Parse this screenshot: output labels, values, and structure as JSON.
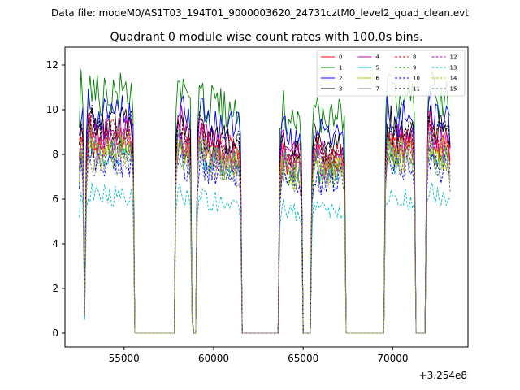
{
  "suptitle": "Data file: modeM0/AS1T03_194T01_9000003620_24731cztM0_level2_quad_clean.evt",
  "chart_data": {
    "type": "line",
    "title": "Quadrant 0 module wise count rates with 100.0s bins.",
    "xlabel": "",
    "ylabel": "",
    "x_offset_label": "+3.254e8",
    "xlim": [
      51700,
      74200
    ],
    "ylim": [
      -0.62,
      12.8
    ],
    "xticks": [
      55000,
      60000,
      65000,
      70000
    ],
    "xtick_labels": [
      "55000",
      "60000",
      "65000",
      "70000"
    ],
    "yticks": [
      0,
      2,
      4,
      6,
      8,
      10,
      12
    ],
    "ytick_labels": [
      "0",
      "2",
      "4",
      "6",
      "8",
      "10",
      "12"
    ],
    "grid": false,
    "legend_location": "top-right",
    "legend_columns": 4,
    "bin_width": 100,
    "x_start": 52500,
    "x_end": 73200,
    "on_intervals": [
      [
        52500,
        52700
      ],
      [
        52900,
        55500
      ],
      [
        57900,
        58700
      ],
      [
        59100,
        61500
      ],
      [
        63700,
        64900
      ],
      [
        65500,
        67300
      ],
      [
        69600,
        71200
      ],
      [
        71900,
        73200
      ]
    ],
    "gap_dips": [
      [
        52800,
        0.8
      ],
      [
        58800,
        0.6
      ],
      [
        64950,
        0
      ],
      [
        71250,
        0
      ],
      [
        71800,
        0
      ]
    ],
    "series": [
      {
        "name": "0",
        "color": "#ff0000",
        "dash": "solid",
        "mean": 8.3
      },
      {
        "name": "1",
        "color": "#008000",
        "dash": "solid",
        "mean": 10.3
      },
      {
        "name": "2",
        "color": "#0000ff",
        "dash": "solid",
        "mean": 9.5
      },
      {
        "name": "3",
        "color": "#000000",
        "dash": "solid",
        "mean": 8.9
      },
      {
        "name": "4",
        "color": "#bf00bf",
        "dash": "solid",
        "mean": 8.6
      },
      {
        "name": "5",
        "color": "#00bfbf",
        "dash": "solid",
        "mean": 7.8
      },
      {
        "name": "6",
        "color": "#bfbf00",
        "dash": "solid",
        "mean": 8.0
      },
      {
        "name": "7",
        "color": "#808080",
        "dash": "solid",
        "mean": 7.9
      },
      {
        "name": "8",
        "color": "#ff0000",
        "dash": "dashed",
        "mean": 8.5
      },
      {
        "name": "9",
        "color": "#008000",
        "dash": "dashed",
        "mean": 7.6
      },
      {
        "name": "10",
        "color": "#0000ff",
        "dash": "dashed",
        "mean": 7.2
      },
      {
        "name": "11",
        "color": "#000000",
        "dash": "dashed",
        "mean": 8.7
      },
      {
        "name": "12",
        "color": "#bf00bf",
        "dash": "dashed",
        "mean": 8.1
      },
      {
        "name": "13",
        "color": "#00bfbf",
        "dash": "dashed",
        "mean": 5.9
      },
      {
        "name": "14",
        "color": "#bfbf00",
        "dash": "dashed",
        "mean": 7.7
      },
      {
        "name": "15",
        "color": "#808080",
        "dash": "dashed",
        "mean": 7.4
      }
    ]
  }
}
